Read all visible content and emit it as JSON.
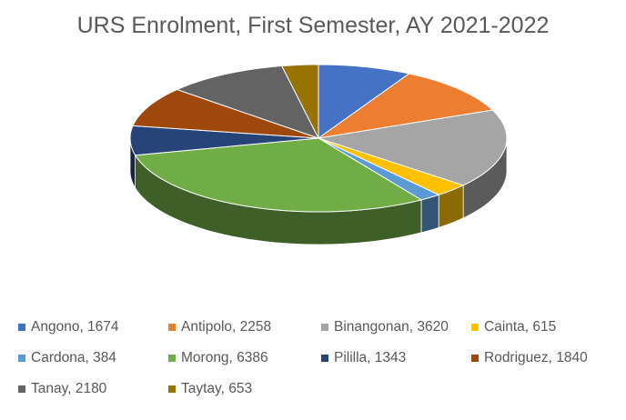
{
  "chart_data": {
    "type": "pie",
    "title": "URS Enrolment, First Semester, AY 2021-2022",
    "slices": [
      {
        "name": "Angono",
        "value": 1674,
        "label": "Angono, 1674",
        "color": "#4472C4"
      },
      {
        "name": "Antipolo",
        "value": 2258,
        "label": "Antipolo, 2258",
        "color": "#ED7D31"
      },
      {
        "name": "Binangonan",
        "value": 3620,
        "label": "Binangonan, 3620",
        "color": "#A5A5A5"
      },
      {
        "name": "Cainta",
        "value": 615,
        "label": "Cainta, 615",
        "color": "#FFC000"
      },
      {
        "name": "Cardona",
        "value": 384,
        "label": "Cardona, 384",
        "color": "#5B9BD5"
      },
      {
        "name": "Morong",
        "value": 6386,
        "label": "Morong, 6386",
        "color": "#70AD47"
      },
      {
        "name": "Pililla",
        "value": 1343,
        "label": "Pililla, 1343",
        "color": "#264478"
      },
      {
        "name": "Rodriguez",
        "value": 1840,
        "label": "Rodriguez, 1840",
        "color": "#9E480E"
      },
      {
        "name": "Tanay",
        "value": 2180,
        "label": "Tanay, 2180",
        "color": "#636363"
      },
      {
        "name": "Taytay",
        "value": 653,
        "label": "Taytay, 653",
        "color": "#997300"
      }
    ],
    "legend_position": "bottom",
    "style": "3d-pie"
  }
}
